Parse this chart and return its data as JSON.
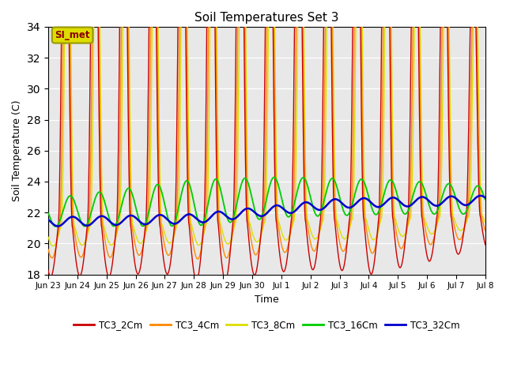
{
  "title": "Soil Temperatures Set 3",
  "xlabel": "Time",
  "ylabel": "Soil Temperature (C)",
  "ylim": [
    18,
    34
  ],
  "yticks": [
    18,
    20,
    22,
    24,
    26,
    28,
    30,
    32,
    34
  ],
  "x_tick_labels": [
    "Jun 23",
    "Jun 24",
    "Jun 25",
    "Jun 26",
    "Jun 27",
    "Jun 28",
    "Jun 29",
    "Jun 30",
    "Jul 1",
    "Jul 2",
    "Jul 3",
    "Jul 4",
    "Jul 5",
    "Jul 6",
    "Jul 7",
    "Jul 8"
  ],
  "colors": {
    "TC3_2Cm": "#cc0000",
    "TC3_4Cm": "#ff8800",
    "TC3_8Cm": "#dddd00",
    "TC3_16Cm": "#00cc00",
    "TC3_32Cm": "#0000cc"
  },
  "bg_color": "#e8e8e8",
  "annotation_text": "SI_met",
  "annotation_color": "#8b0000",
  "annotation_bg": "#dddd00",
  "annotation_border": "#999900"
}
